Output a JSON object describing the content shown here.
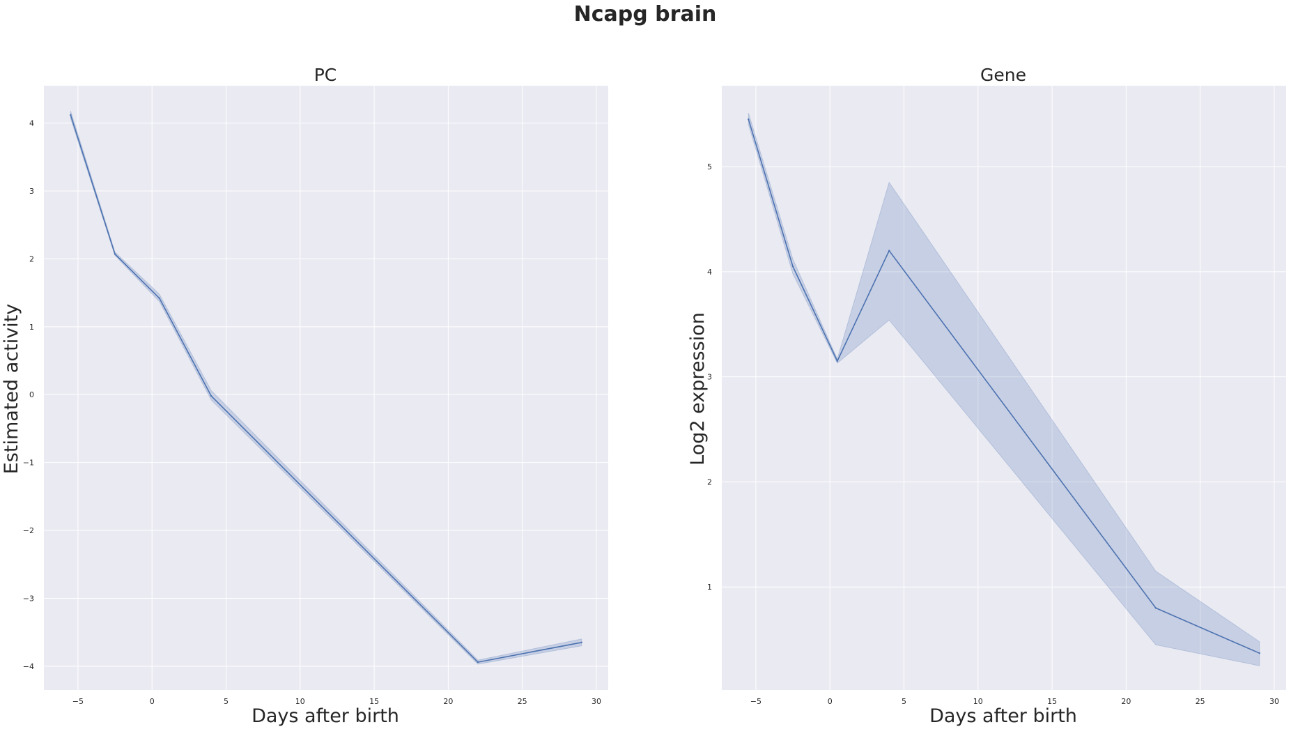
{
  "title": "Ncapg brain",
  "chart_data": [
    {
      "type": "line",
      "title": "PC",
      "xlabel": "Days after birth",
      "ylabel": "Estimated activity",
      "xlim": [
        -7.3,
        30.8
      ],
      "ylim": [
        -4.35,
        4.55
      ],
      "xticks": [
        -5,
        0,
        5,
        10,
        15,
        20,
        25,
        30
      ],
      "xtick_labels": [
        "−5",
        "0",
        "5",
        "10",
        "15",
        "20",
        "25",
        "30"
      ],
      "yticks": [
        -4,
        -3,
        -2,
        -1,
        0,
        1,
        2,
        3,
        4
      ],
      "ytick_labels": [
        "−4",
        "−3",
        "−2",
        "−1",
        "0",
        "1",
        "2",
        "3",
        "4"
      ],
      "grid": true,
      "x": [
        -5.5,
        -2.5,
        0.5,
        4,
        22,
        29
      ],
      "y": [
        4.12,
        2.07,
        1.42,
        -0.02,
        -3.94,
        -3.65
      ],
      "ci_lower": [
        4.07,
        2.05,
        1.37,
        -0.08,
        -3.97,
        -3.7
      ],
      "ci_upper": [
        4.18,
        2.1,
        1.48,
        0.06,
        -3.91,
        -3.6
      ],
      "color": "#4c72b0"
    },
    {
      "type": "line",
      "title": "Gene",
      "xlabel": "Days after birth",
      "ylabel": "Log2 expression",
      "xlim": [
        -7.3,
        30.8
      ],
      "ylim": [
        0.02,
        5.77
      ],
      "xticks": [
        -5,
        0,
        5,
        10,
        15,
        20,
        25,
        30
      ],
      "xtick_labels": [
        "−5",
        "0",
        "5",
        "10",
        "15",
        "20",
        "25",
        "30"
      ],
      "yticks": [
        1,
        2,
        3,
        4,
        5
      ],
      "ytick_labels": [
        "1",
        "2",
        "3",
        "4",
        "5"
      ],
      "grid": true,
      "x": [
        -5.5,
        -2.5,
        0.5,
        4,
        22,
        29
      ],
      "y": [
        5.45,
        4.05,
        3.15,
        4.2,
        0.8,
        0.37
      ],
      "ci_lower": [
        5.4,
        3.98,
        3.13,
        3.54,
        0.45,
        0.25
      ],
      "ci_upper": [
        5.51,
        4.12,
        3.17,
        4.85,
        1.15,
        0.48
      ],
      "color": "#4c72b0"
    }
  ],
  "colors": {
    "plot_background": "#eaeaf2",
    "grid": "#ffffff",
    "line": "#4c72b0",
    "band": "#4c72b0",
    "text": "#262626"
  }
}
